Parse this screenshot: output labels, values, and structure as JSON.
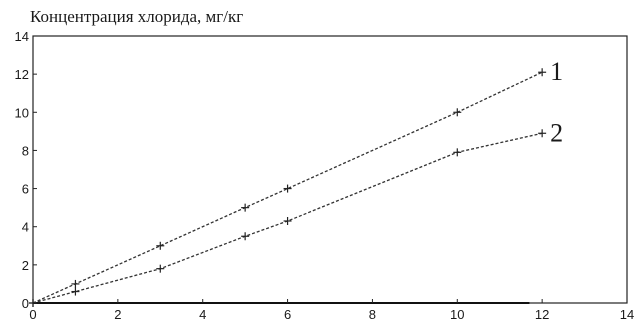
{
  "chart_data": {
    "type": "line",
    "title": "Концентрация хлорида, мг/кг",
    "xlabel": "",
    "ylabel": "",
    "xlim": [
      0,
      14
    ],
    "ylim": [
      0,
      14
    ],
    "x_ticks": [
      "0",
      "2",
      "4",
      "6",
      "8",
      "10",
      "12",
      "14"
    ],
    "y_ticks": [
      "0",
      "2",
      "4",
      "6",
      "8",
      "10",
      "12",
      "14"
    ],
    "grid": false,
    "series": [
      {
        "name": "1",
        "points": [
          [
            0,
            0
          ],
          [
            1,
            1
          ],
          [
            3,
            3
          ],
          [
            5,
            5
          ],
          [
            6,
            6
          ],
          [
            10,
            10
          ],
          [
            12,
            12.1
          ]
        ]
      },
      {
        "name": "2",
        "points": [
          [
            0,
            0
          ],
          [
            1,
            0.6
          ],
          [
            3,
            1.8
          ],
          [
            5,
            3.5
          ],
          [
            6,
            4.3
          ],
          [
            10,
            7.9
          ],
          [
            12,
            8.9
          ]
        ]
      }
    ]
  }
}
